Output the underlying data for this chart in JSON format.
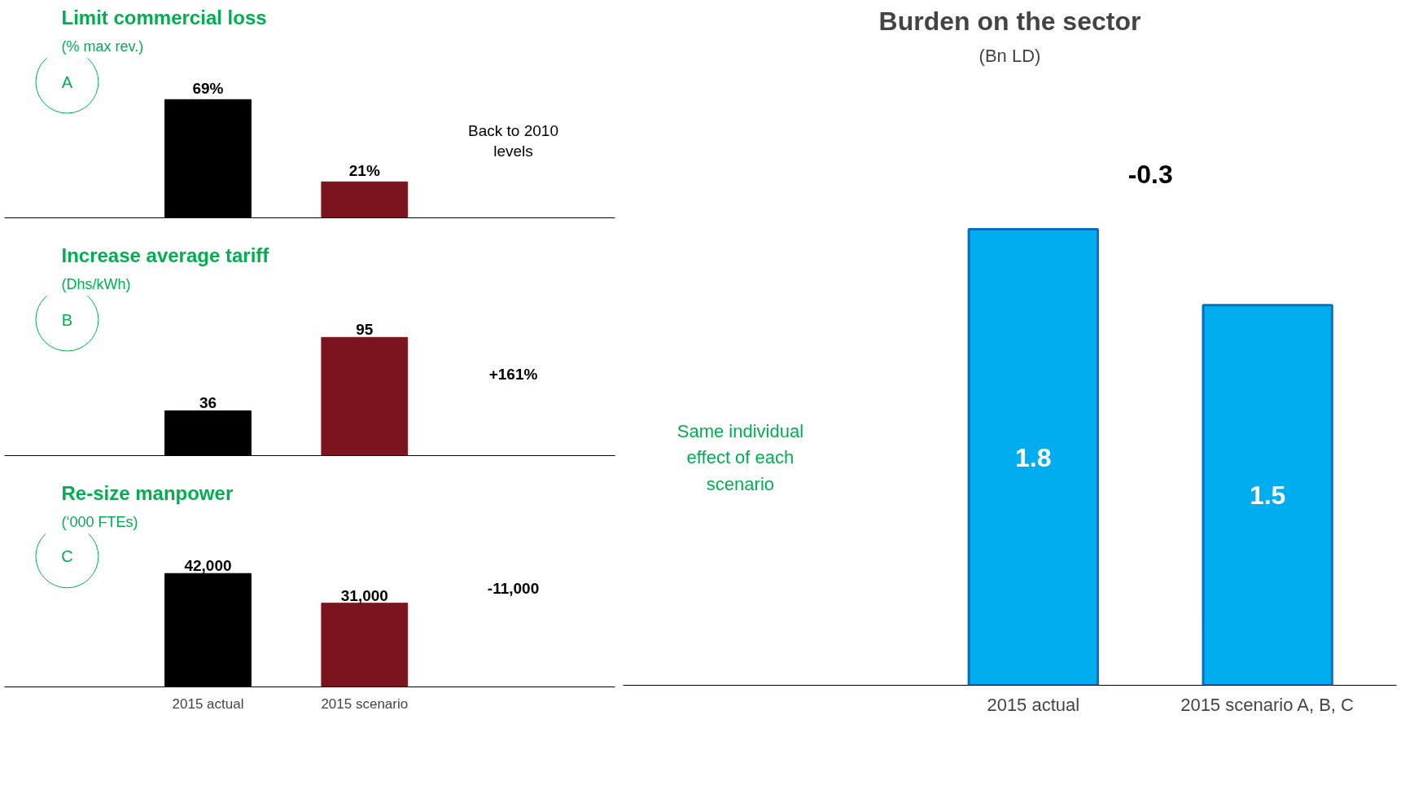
{
  "chart_data": [
    {
      "type": "bar",
      "title": "Limit commercial loss",
      "subtitle": "(% max rev.)",
      "categories": [
        "2015 actual",
        "2015 scenario"
      ],
      "values": [
        69,
        21
      ],
      "colors": [
        "#000000",
        "#7b141e"
      ],
      "value_labels": [
        "69%",
        "21%"
      ],
      "annotations": [
        "A",
        "Back to 2010 levels"
      ],
      "tick_labels": false,
      "grid": false
    },
    {
      "type": "bar",
      "title": "Increase average tariff",
      "subtitle": "(Dhs/kWh)",
      "categories": [
        "2015 actual",
        "2015 scenario"
      ],
      "values": [
        36,
        95
      ],
      "colors": [
        "#000000",
        "#7b141e"
      ],
      "value_labels": [
        "36",
        "95"
      ],
      "annotations": [
        "B",
        "+161%"
      ],
      "tick_labels": false,
      "grid": false
    },
    {
      "type": "bar",
      "title": "Re-size manpower",
      "subtitle": "(‘000 FTEs)",
      "categories": [
        "2015 actual",
        "2015 scenario"
      ],
      "values": [
        42000,
        31000
      ],
      "colors": [
        "#000000",
        "#7b141e"
      ],
      "value_labels": [
        "42,000",
        "31,000"
      ],
      "annotations": [
        "C",
        "-11,000"
      ],
      "tick_labels": "x",
      "grid": false
    },
    {
      "type": "bar",
      "title": "Burden on the sector",
      "subtitle": "(Bn LD)",
      "categories": [
        "2015 actual",
        "2015 scenario A, B, C"
      ],
      "values": [
        1.8,
        1.5
      ],
      "color": "#00aeef",
      "data_labels": true,
      "annotations": [
        "Same individual effect of each scenario",
        "-0.3"
      ],
      "tick_labels": "x",
      "grid": false
    }
  ]
}
